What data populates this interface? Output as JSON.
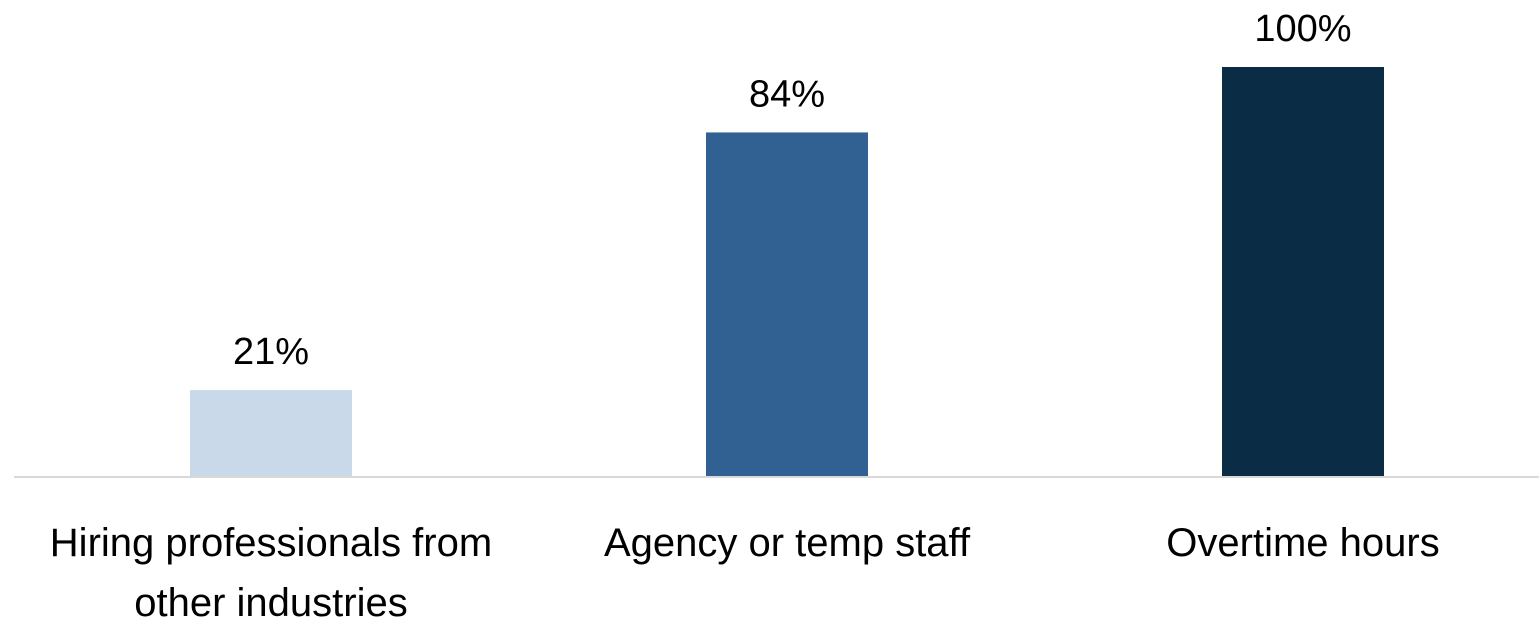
{
  "chart_data": {
    "type": "bar",
    "categories": [
      "Hiring professionals from other industries",
      "Agency or temp staff",
      "Overtime hours"
    ],
    "values": [
      21,
      84,
      100
    ],
    "value_labels": [
      "21%",
      "84%",
      "100%"
    ],
    "colors": [
      "#c9d9ea",
      "#316193",
      "#0a2c44"
    ]
  }
}
